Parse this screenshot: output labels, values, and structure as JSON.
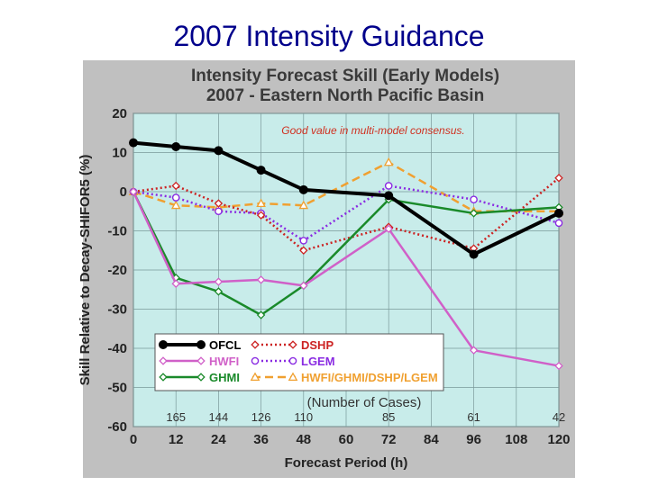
{
  "slide_title": "2007 Intensity Guidance",
  "chart_data": {
    "type": "line",
    "title": "Intensity Forecast Skill (Early Models)",
    "subtitle": "2007 - Eastern North Pacific Basin",
    "xlabel": "Forecast Period (h)",
    "ylabel": "Skill Relative to Decay-SHIFOR5 (%)",
    "xlim": [
      0,
      120
    ],
    "ylim": [
      -60,
      20
    ],
    "x_ticks": [
      0,
      12,
      24,
      36,
      48,
      60,
      72,
      84,
      96,
      108,
      120
    ],
    "y_ticks": [
      20,
      10,
      0,
      -10,
      -20,
      -30,
      -40,
      -50,
      -60
    ],
    "x": [
      0,
      12,
      24,
      36,
      48,
      72,
      96,
      120
    ],
    "annotation": "Good value in multi-model consensus.",
    "cases_label": "(Number of Cases)",
    "cases": [
      {
        "x": 12,
        "n": "165"
      },
      {
        "x": 24,
        "n": "144"
      },
      {
        "x": 36,
        "n": "126"
      },
      {
        "x": 48,
        "n": "110"
      },
      {
        "x": 72,
        "n": "85"
      },
      {
        "x": 96,
        "n": "61"
      },
      {
        "x": 120,
        "n": "42"
      }
    ],
    "series": [
      {
        "name": "OFCL",
        "color": "#000000",
        "style": "solid",
        "width": 4,
        "marker": "circle-filled",
        "values": [
          12.5,
          11.5,
          10.5,
          5.5,
          0.5,
          -1,
          -16,
          -5.5
        ]
      },
      {
        "name": "DSHP",
        "color": "#cc2222",
        "style": "dotted",
        "width": 2.5,
        "marker": "diamond",
        "values": [
          0,
          1.5,
          -3,
          -6,
          -15,
          -9,
          -14.5,
          3.5
        ]
      },
      {
        "name": "HWFI",
        "color": "#d060c8",
        "style": "solid",
        "width": 2.5,
        "marker": "diamond",
        "values": [
          0,
          -23.5,
          -23,
          -22.5,
          -24,
          -9.5,
          -40.5,
          -44.5
        ]
      },
      {
        "name": "LGEM",
        "color": "#8a2be2",
        "style": "dotted",
        "width": 2.5,
        "marker": "circle-open",
        "values": [
          0,
          -1.5,
          -5,
          -5.5,
          -12.5,
          1.5,
          -2,
          -8
        ]
      },
      {
        "name": "GHMI",
        "color": "#1a8a2a",
        "style": "solid",
        "width": 2.5,
        "marker": "diamond",
        "values": [
          0,
          -22,
          -25.5,
          -31.5,
          -24,
          -2,
          -5.5,
          -4
        ]
      },
      {
        "name": "HWFI/GHMI/DSHP/LGEM",
        "color": "#f0a030",
        "style": "dashed",
        "width": 2.5,
        "marker": "triangle",
        "values": [
          0,
          -3.5,
          -4,
          -3,
          -3.5,
          7.5,
          -5,
          -5
        ]
      }
    ],
    "legend_position": "bottom-left"
  }
}
